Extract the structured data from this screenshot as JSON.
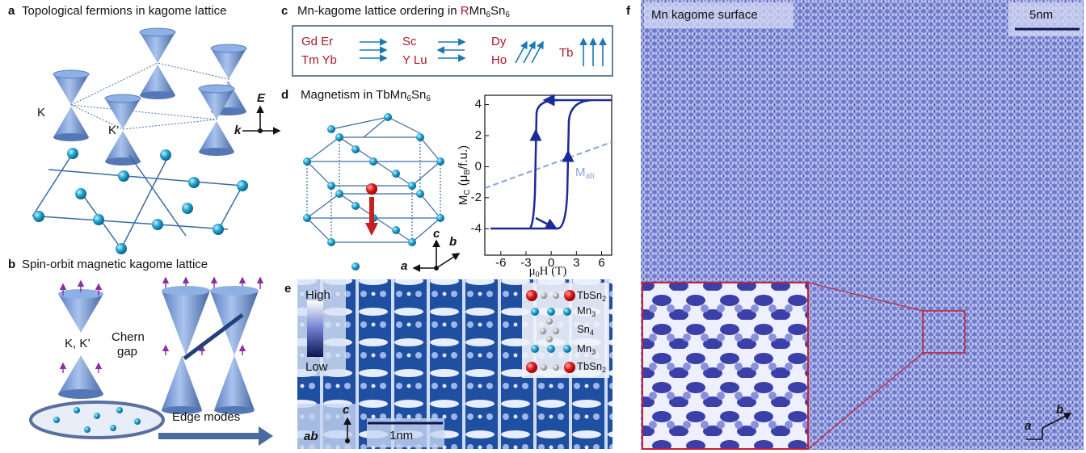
{
  "panels": {
    "a": {
      "letter": "a",
      "title": "Topological fermions in kagome lattice",
      "labels": [
        "K",
        "K’",
        "E",
        "k"
      ]
    },
    "b": {
      "letter": "b",
      "title": "Spin-orbit magnetic kagome lattice",
      "labels": [
        "K, K’",
        "Chern",
        "gap",
        "Edge modes"
      ]
    },
    "c": {
      "letter": "c",
      "title": [
        "Mn-kagome lattice ordering in ",
        "R",
        "Mn",
        "6",
        "Sn",
        "6"
      ],
      "groups": [
        [
          "Gd Er",
          "Tm Yb"
        ],
        [
          "Sc",
          "Y Lu"
        ],
        [
          "Dy",
          "Ho"
        ],
        [
          "Tb"
        ]
      ]
    },
    "d": {
      "letter": "d",
      "title": [
        "Magnetism in TbMn",
        "6",
        "Sn",
        "6"
      ],
      "axes_labels": [
        "c",
        "b",
        "a"
      ],
      "plot": {
        "ylabel": [
          "M",
          "C",
          " (μ",
          "B",
          "/f.u.)"
        ],
        "xlabel": [
          "μ",
          "0",
          "H (T)"
        ],
        "annotation": [
          "M",
          "ab"
        ],
        "xlim": [
          -7.9,
          7.2
        ],
        "ylim": [
          -5.7,
          4.6
        ],
        "xticks": [
          -6,
          -3,
          0,
          3,
          6
        ],
        "yticks": [
          4,
          2,
          0,
          -2,
          -4
        ]
      }
    },
    "e": {
      "letter": "e",
      "scale": [
        "High",
        "Low"
      ],
      "scalebar": "1nm",
      "axes_labels": [
        "c",
        "ab"
      ],
      "layers": [
        [
          "TbSn",
          "2"
        ],
        [
          "Mn",
          "3"
        ],
        [
          "Sn",
          "4"
        ],
        [
          "Mn",
          "3"
        ],
        [
          "TbSn",
          "2"
        ]
      ]
    },
    "f": {
      "letter": "f",
      "title": "Mn kagome surface",
      "scalebar": "5nm",
      "axes_labels": [
        "a",
        "b"
      ]
    }
  }
}
